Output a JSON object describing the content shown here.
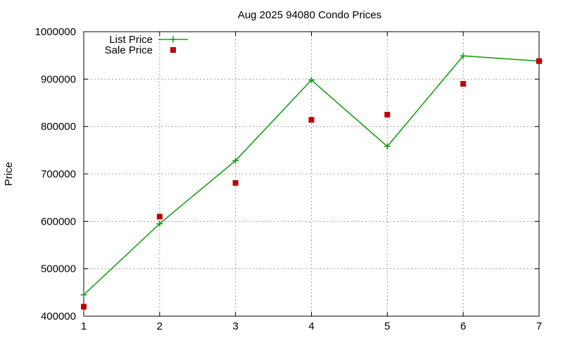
{
  "chart_data": {
    "type": "line",
    "title": "Aug 2025 94080 Condo Prices",
    "xlabel": "",
    "ylabel": "Price",
    "x": [
      1,
      2,
      3,
      4,
      5,
      6,
      7
    ],
    "xlim": [
      1,
      7
    ],
    "ylim": [
      400000,
      1000000
    ],
    "x_ticks": [
      1,
      2,
      3,
      4,
      5,
      6,
      7
    ],
    "y_ticks": [
      400000,
      500000,
      600000,
      700000,
      800000,
      900000,
      1000000
    ],
    "grid": true,
    "legend_position": "top-left",
    "series": [
      {
        "name": "List Price",
        "style": "line-with-plus-markers",
        "color": "#1aa01a",
        "values": [
          445000,
          595000,
          728000,
          898000,
          758000,
          949000,
          938000
        ]
      },
      {
        "name": "Sale Price",
        "style": "square-markers",
        "color": "#c00000",
        "values": [
          420000,
          610000,
          681000,
          814000,
          825000,
          890000,
          938000
        ]
      }
    ]
  }
}
